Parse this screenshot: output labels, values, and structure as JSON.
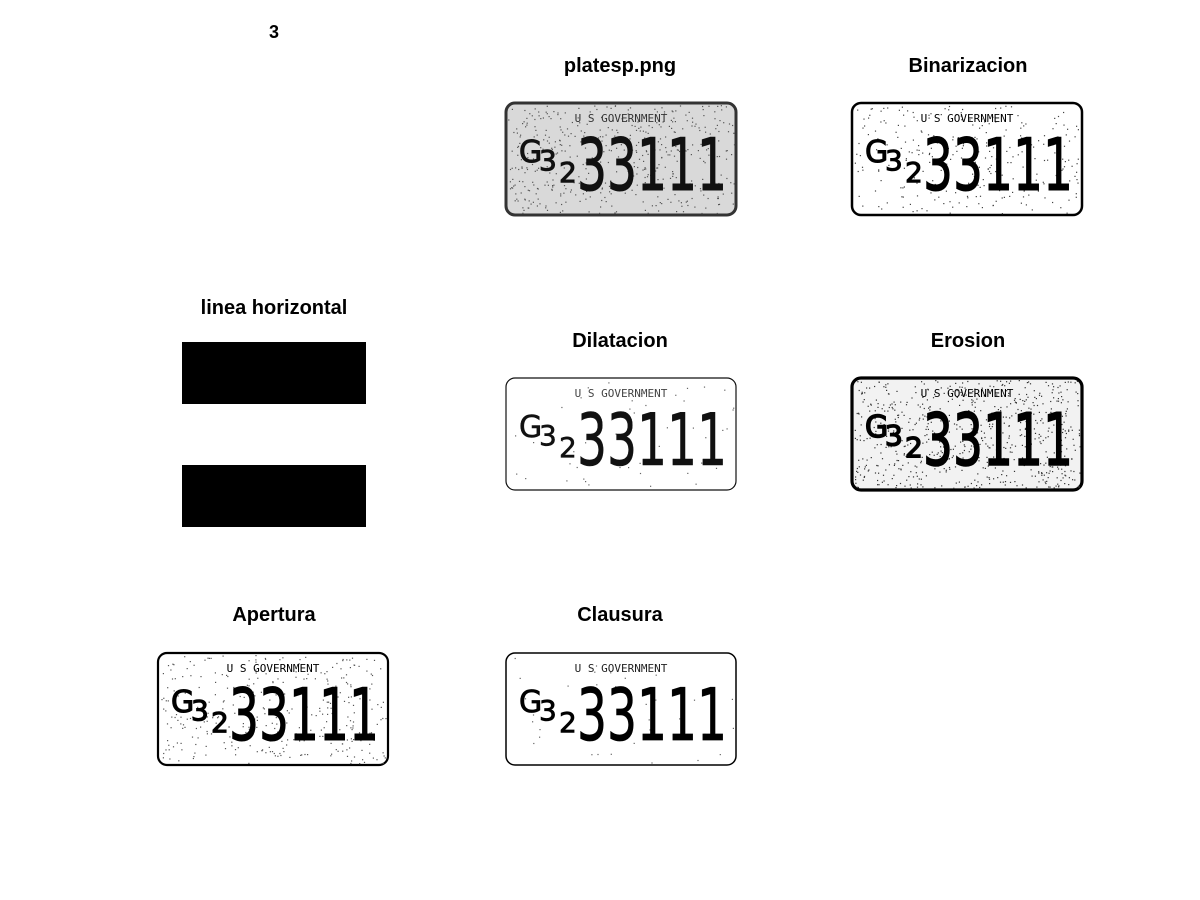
{
  "figure_number": "3",
  "panels": {
    "original": {
      "title": "platesp.png"
    },
    "binarizacion": {
      "title": "Binarizacion"
    },
    "linea": {
      "title": "linea horizontal"
    },
    "dilatacion": {
      "title": "Dilatacion"
    },
    "erosion": {
      "title": "Erosion"
    },
    "apertura": {
      "title": "Apertura"
    },
    "clausura": {
      "title": "Clausura"
    }
  },
  "plate": {
    "header": "U S GOVERNMENT",
    "prefix_large": "G",
    "prefix_mid": "3",
    "prefix_small": "2",
    "number": "33111"
  }
}
